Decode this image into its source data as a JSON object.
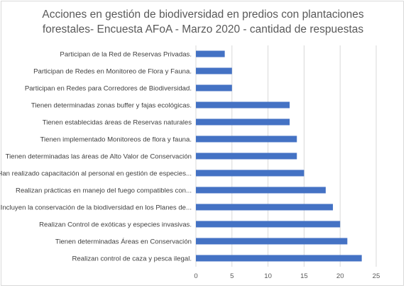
{
  "chart_data": {
    "type": "bar",
    "orientation": "horizontal",
    "title_lines": [
      "Acciones en gestión de biodiversidad en predios con plantaciones",
      "forestales- Encuesta AFoA - Marzo 2020 - cantidad de respuestas"
    ],
    "categories": [
      "Participan de la Red de Reservas Privadas.",
      "Participan de Redes en Monitoreo de Flora y Fauna.",
      "Participan en Redes para Corredores de Biodiversidad.",
      "Tienen determinadas zonas buffer y fajas ecológicas.",
      "Tienen establecidas áreas de Reservas naturales",
      "Tienen implementado Monitoreos de flora y fauna.",
      "Tienen determinadas las áreas de Alto Valor de Conservación",
      "Han realizado capacitación al personal en gestión de especies...",
      "Realizan prácticas en manejo del fuego compatibles con...",
      "Incluyen la conservación de la biodiversidad en los  Planes de...",
      "Realizan Control de exóticas y especies invasivas.",
      "Tienen determinadas Áreas en Conservación",
      "Realizan control de caza y pesca ilegal."
    ],
    "values": [
      4,
      5,
      5,
      13,
      13,
      14,
      14,
      15,
      18,
      19,
      20,
      21,
      23
    ],
    "xlim": [
      0,
      25
    ],
    "xticks": [
      "0",
      "5",
      "10",
      "15",
      "20",
      "25"
    ],
    "gridlines": true,
    "bar_color": "#4472C4",
    "grid_color": "#d9d9d9"
  }
}
